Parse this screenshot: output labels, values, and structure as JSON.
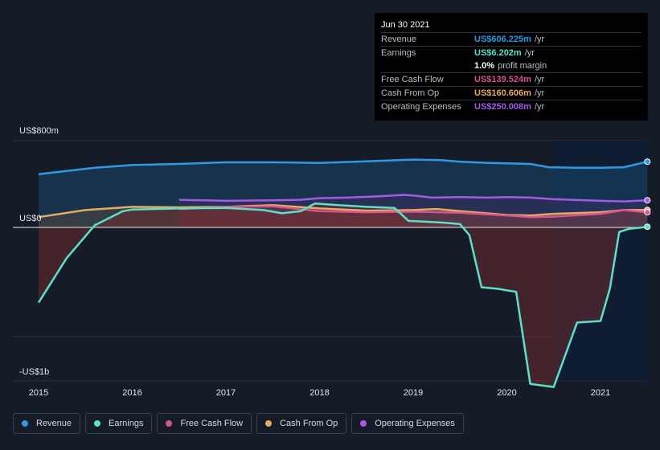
{
  "chart_data": {
    "type": "area",
    "x_ticks": [
      "2015",
      "2016",
      "2017",
      "2018",
      "2019",
      "2020",
      "2021"
    ],
    "y_axis": {
      "top_label": "US$800m",
      "zero_label": "US$0",
      "bottom_label": "-US$1b",
      "ylim": [
        -1000,
        800
      ]
    },
    "units": "US$m",
    "series": [
      {
        "name": "Revenue",
        "color": "#2e9ae6",
        "points": [
          [
            2015.0,
            490
          ],
          [
            2015.6,
            550
          ],
          [
            2016.0,
            575
          ],
          [
            2016.5,
            585
          ],
          [
            2017.0,
            600
          ],
          [
            2017.5,
            600
          ],
          [
            2018.0,
            595
          ],
          [
            2018.5,
            610
          ],
          [
            2019.0,
            625
          ],
          [
            2019.3,
            620
          ],
          [
            2019.5,
            605
          ],
          [
            2019.8,
            595
          ],
          [
            2020.0,
            590
          ],
          [
            2020.25,
            585
          ],
          [
            2020.45,
            555
          ],
          [
            2020.75,
            550
          ],
          [
            2021.0,
            550
          ],
          [
            2021.25,
            555
          ],
          [
            2021.5,
            606.225
          ]
        ]
      },
      {
        "name": "Earnings",
        "color": "#58e3c9",
        "points": [
          [
            2015.0,
            -490
          ],
          [
            2015.3,
            -200
          ],
          [
            2015.6,
            20
          ],
          [
            2015.9,
            150
          ],
          [
            2016.0,
            165
          ],
          [
            2016.5,
            175
          ],
          [
            2017.0,
            180
          ],
          [
            2017.4,
            160
          ],
          [
            2017.6,
            130
          ],
          [
            2017.8,
            150
          ],
          [
            2017.95,
            220
          ],
          [
            2018.2,
            205
          ],
          [
            2018.5,
            190
          ],
          [
            2018.8,
            180
          ],
          [
            2018.95,
            60
          ],
          [
            2019.3,
            45
          ],
          [
            2019.5,
            30
          ],
          [
            2019.6,
            -50
          ],
          [
            2019.73,
            -390
          ],
          [
            2019.9,
            -400
          ],
          [
            2020.0,
            -410
          ],
          [
            2020.1,
            -420
          ],
          [
            2020.25,
            -1020
          ],
          [
            2020.5,
            -1040
          ],
          [
            2020.75,
            -620
          ],
          [
            2021.0,
            -610
          ],
          [
            2021.1,
            -400
          ],
          [
            2021.2,
            -30
          ],
          [
            2021.3,
            -10
          ],
          [
            2021.5,
            6.202
          ]
        ]
      },
      {
        "name": "Free Cash Flow",
        "color": "#d9548e",
        "points": [
          [
            2016.5,
            170
          ],
          [
            2017.0,
            190
          ],
          [
            2017.5,
            195
          ],
          [
            2018.0,
            150
          ],
          [
            2018.5,
            140
          ],
          [
            2019.0,
            145
          ],
          [
            2019.5,
            135
          ],
          [
            2020.0,
            110
          ],
          [
            2020.25,
            95
          ],
          [
            2020.5,
            100
          ],
          [
            2021.0,
            125
          ],
          [
            2021.25,
            160
          ],
          [
            2021.5,
            139.524
          ]
        ]
      },
      {
        "name": "Cash From Op",
        "color": "#e8aa62",
        "points": [
          [
            2015.0,
            95
          ],
          [
            2015.5,
            160
          ],
          [
            2016.0,
            190
          ],
          [
            2016.5,
            185
          ],
          [
            2017.0,
            190
          ],
          [
            2017.5,
            205
          ],
          [
            2018.0,
            175
          ],
          [
            2018.5,
            155
          ],
          [
            2019.0,
            160
          ],
          [
            2019.25,
            170
          ],
          [
            2019.5,
            150
          ],
          [
            2020.0,
            115
          ],
          [
            2020.25,
            110
          ],
          [
            2020.5,
            125
          ],
          [
            2021.0,
            140
          ],
          [
            2021.25,
            160
          ],
          [
            2021.5,
            160.606
          ]
        ]
      },
      {
        "name": "Operating Expenses",
        "color": "#a659e8",
        "points": [
          [
            2016.5,
            255
          ],
          [
            2017.0,
            245
          ],
          [
            2017.5,
            250
          ],
          [
            2017.8,
            255
          ],
          [
            2018.0,
            270
          ],
          [
            2018.3,
            275
          ],
          [
            2018.6,
            285
          ],
          [
            2018.9,
            300
          ],
          [
            2019.0,
            295
          ],
          [
            2019.2,
            275
          ],
          [
            2019.5,
            280
          ],
          [
            2019.8,
            275
          ],
          [
            2020.0,
            280
          ],
          [
            2020.25,
            275
          ],
          [
            2020.5,
            260
          ],
          [
            2021.0,
            245
          ],
          [
            2021.25,
            240
          ],
          [
            2021.5,
            250.008
          ]
        ]
      }
    ],
    "grid": true,
    "legend_position": "bottom"
  },
  "tooltip": {
    "date": "Jun 30 2021",
    "rows": [
      {
        "label": "Revenue",
        "value": "US$606.225m",
        "unit": "/yr",
        "color": "#2e9ae6"
      },
      {
        "label": "Earnings",
        "value": "US$6.202m",
        "unit": "/yr",
        "color": "#58e3c9"
      },
      {
        "label": "",
        "value": "1.0%",
        "unit": "profit margin",
        "color": "#ffffff"
      },
      {
        "label": "Free Cash Flow",
        "value": "US$139.524m",
        "unit": "/yr",
        "color": "#d9548e"
      },
      {
        "label": "Cash From Op",
        "value": "US$160.606m",
        "unit": "/yr",
        "color": "#e8aa62"
      },
      {
        "label": "Operating Expenses",
        "value": "US$250.008m",
        "unit": "/yr",
        "color": "#a659e8"
      }
    ]
  },
  "legend": [
    {
      "label": "Revenue",
      "color": "#2e9ae6"
    },
    {
      "label": "Earnings",
      "color": "#58e3c9"
    },
    {
      "label": "Free Cash Flow",
      "color": "#d9548e"
    },
    {
      "label": "Cash From Op",
      "color": "#e8aa62"
    },
    {
      "label": "Operating Expenses",
      "color": "#a659e8"
    }
  ]
}
